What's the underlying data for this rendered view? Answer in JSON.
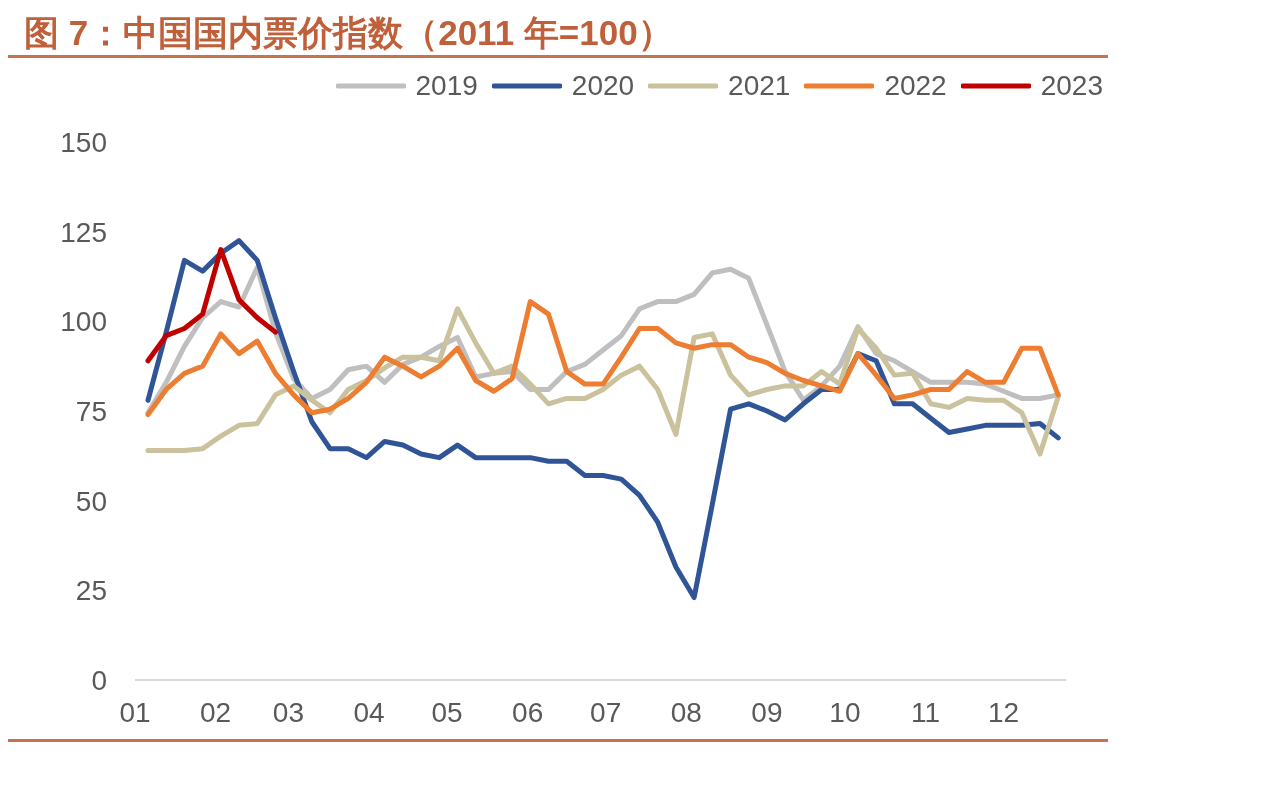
{
  "chart_data": {
    "type": "line",
    "title": "图 7：中国国内票价指数（2011 年=100）",
    "x": [
      "--01-06",
      "--01-13",
      "--01-20",
      "--01-27",
      "--02-03",
      "--02-10",
      "--02-17",
      "--02-24",
      "--03-03",
      "--03-10",
      "--03-17",
      "--03-24",
      "--03-31",
      "--04-07",
      "--04-14",
      "--04-21",
      "--04-28",
      "--05-05",
      "--05-12",
      "--05-19",
      "--05-26",
      "--06-02",
      "--06-09",
      "--06-16",
      "--06-23",
      "--06-30",
      "--07-07",
      "--07-14",
      "--07-21",
      "--07-28",
      "--08-04",
      "--08-11",
      "--08-18",
      "--08-25",
      "--09-01",
      "--09-08",
      "--09-15",
      "--09-22",
      "--09-29",
      "--10-06",
      "--10-13",
      "--10-20",
      "--10-27",
      "--11-03",
      "--11-10",
      "--11-17",
      "--11-24",
      "--12-01",
      "--12-08",
      "--12-15",
      "--12-22"
    ],
    "xlim": [
      "--01-01",
      "--12-25"
    ],
    "xticks": [
      {
        "value": "--01-01",
        "label": "01"
      },
      {
        "value": "--02-01",
        "label": "02"
      },
      {
        "value": "--03-01",
        "label": "03"
      },
      {
        "value": "--04-01",
        "label": "04"
      },
      {
        "value": "--05-01",
        "label": "05"
      },
      {
        "value": "--06-01",
        "label": "06"
      },
      {
        "value": "--07-01",
        "label": "07"
      },
      {
        "value": "--08-01",
        "label": "08"
      },
      {
        "value": "--09-01",
        "label": "09"
      },
      {
        "value": "--10-01",
        "label": "10"
      },
      {
        "value": "--11-01",
        "label": "11"
      },
      {
        "value": "--12-01",
        "label": "12"
      }
    ],
    "ylim": [
      0,
      150
    ],
    "yticks": [
      0,
      25,
      50,
      75,
      100,
      125,
      150
    ],
    "legend": "top right",
    "series": [
      {
        "name": "2019",
        "color": "#bfbfbf",
        "values": [
          74.5,
          83,
          93,
          101,
          105.5,
          104,
          115,
          97,
          84,
          78.5,
          81,
          86.5,
          87.5,
          83,
          88,
          90,
          93,
          95.5,
          84.5,
          85.5,
          86,
          81,
          81,
          86,
          88,
          92,
          96,
          103.5,
          105.5,
          105.5,
          107.5,
          113.5,
          114.5,
          112,
          99,
          86,
          78,
          82,
          87.5,
          98.5,
          91,
          89,
          86,
          83,
          83,
          83,
          82.5,
          80.5,
          78.5,
          78.5,
          79.5
        ]
      },
      {
        "name": "2020",
        "color": "#2f5597",
        "values": [
          78,
          97,
          117,
          114,
          119,
          122.5,
          117,
          101,
          86,
          72,
          64.5,
          64.5,
          62,
          66.5,
          65.5,
          63,
          62,
          65.5,
          62,
          62,
          62,
          62,
          61,
          61,
          57,
          57,
          56,
          51.5,
          44,
          31.5,
          23,
          49,
          75.5,
          77,
          75,
          72.5,
          77,
          81,
          81,
          91,
          89,
          77,
          77,
          73,
          69,
          70,
          71,
          71,
          71,
          71.5,
          67.5
        ]
      },
      {
        "name": "2021",
        "color": "#c9c29d",
        "values": [
          64,
          64,
          64,
          64.5,
          68,
          71,
          71.5,
          79.5,
          82,
          78,
          74.5,
          81,
          83.5,
          87,
          90,
          90,
          89,
          103.5,
          94,
          85.5,
          87.5,
          82.5,
          77,
          78.5,
          78.5,
          81,
          85,
          87.5,
          81,
          68.5,
          95.5,
          96.5,
          85,
          79.5,
          81,
          82,
          82,
          86,
          82.5,
          98,
          92.5,
          85,
          85.5,
          77,
          76,
          78.5,
          78,
          78,
          74.5,
          63,
          79
        ]
      },
      {
        "name": "2022",
        "color": "#ed7d31",
        "values": [
          74,
          81,
          85.5,
          87.5,
          96.5,
          91,
          94.5,
          85.5,
          79.5,
          74.5,
          75.5,
          78.5,
          83,
          90,
          87.5,
          84.5,
          87.5,
          92.5,
          83.5,
          80.5,
          84,
          105.5,
          102,
          86,
          82.5,
          82.5,
          90,
          98,
          98,
          94,
          92.5,
          93.5,
          93.5,
          90,
          88.5,
          85.5,
          83.5,
          82,
          80.5,
          91,
          85,
          78.5,
          79.5,
          81,
          81,
          86,
          83,
          83,
          92.5,
          92.5,
          79.5
        ]
      },
      {
        "name": "2023",
        "color": "#c00000",
        "values": [
          89,
          96,
          98,
          102,
          120,
          106,
          101,
          97,
          null,
          null,
          null,
          null,
          null,
          null,
          null,
          null,
          null,
          null,
          null,
          null,
          null,
          null,
          null,
          null,
          null,
          null,
          null,
          null,
          null,
          null,
          null,
          null,
          null,
          null,
          null,
          null,
          null,
          null,
          null,
          null,
          null,
          null,
          null,
          null,
          null,
          null,
          null,
          null,
          null,
          null,
          null
        ]
      }
    ]
  }
}
